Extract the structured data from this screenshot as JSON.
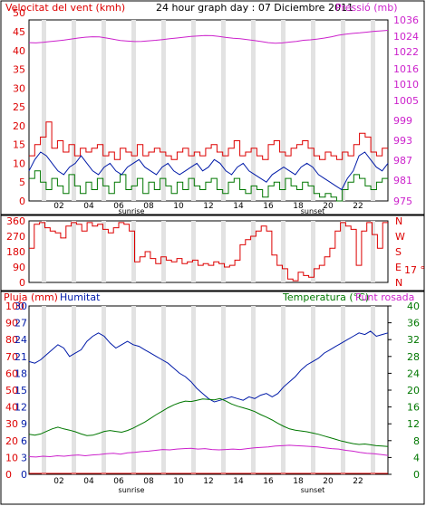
{
  "chart_data": [
    {
      "type": "line",
      "title": "24 hour graph day : 07 Diciembre 2011",
      "left_axis_label": "Velocitat del vent (kmh)",
      "right_axis_label": "Pressió (mb)",
      "left_ticks": [
        "0",
        "5",
        "10",
        "15",
        "20",
        "25",
        "30",
        "35",
        "40",
        "45",
        "50"
      ],
      "right_ticks": [
        "975",
        "981",
        "987",
        "993",
        "999",
        "1005",
        "1010",
        "1016",
        "1022",
        "1024",
        "1030",
        "1036"
      ],
      "x_ticks": [
        "02",
        "04",
        "06",
        "08",
        "10",
        "12",
        "14",
        "16",
        "18",
        "20",
        "22"
      ],
      "annotations": [
        "sunrise",
        "sunset"
      ],
      "colors": {
        "wind": "#dd0000",
        "wind_avg": "#001aa8",
        "gust_low": "#007700",
        "pressure": "#cc22cc"
      },
      "series": [
        {
          "name": "wind_max",
          "values": [
            12,
            15,
            17,
            21,
            14,
            16,
            13,
            15,
            12,
            14,
            13,
            14,
            15,
            12,
            13,
            11,
            14,
            13,
            12,
            15,
            12,
            13,
            14,
            13,
            12,
            11,
            13,
            14,
            12,
            13,
            12,
            14,
            15,
            13,
            12,
            14,
            16,
            12,
            13,
            14,
            12,
            11,
            15,
            16,
            13,
            12,
            14,
            15,
            16,
            14,
            12,
            11,
            13,
            12,
            11,
            13,
            12,
            15,
            18,
            17,
            13,
            12,
            14
          ]
        },
        {
          "name": "wind_avg",
          "values": [
            8,
            11,
            13,
            12,
            10,
            8,
            7,
            9,
            10,
            12,
            10,
            8,
            7,
            9,
            10,
            8,
            7,
            9,
            10,
            11,
            9,
            8,
            7,
            9,
            10,
            8,
            7,
            8,
            9,
            10,
            8,
            9,
            11,
            10,
            8,
            7,
            9,
            10,
            8,
            7,
            6,
            5,
            7,
            8,
            9,
            8,
            7,
            9,
            10,
            9,
            7,
            6,
            5,
            4,
            3,
            6,
            8,
            12,
            13,
            11,
            9,
            8,
            10
          ]
        },
        {
          "name": "wind_min",
          "values": [
            6,
            8,
            5,
            3,
            6,
            4,
            2,
            7,
            4,
            2,
            5,
            3,
            6,
            4,
            2,
            5,
            7,
            3,
            4,
            6,
            2,
            5,
            3,
            6,
            4,
            2,
            5,
            3,
            6,
            4,
            3,
            5,
            6,
            3,
            2,
            5,
            6,
            3,
            2,
            4,
            3,
            1,
            4,
            5,
            3,
            6,
            4,
            3,
            5,
            4,
            2,
            1,
            2,
            1,
            0,
            3,
            5,
            7,
            6,
            4,
            3,
            5,
            6
          ]
        },
        {
          "name": "pressure",
          "values": [
            1027.5,
            1027.4,
            1027.6,
            1027.9,
            1028.2,
            1028.5,
            1028.9,
            1029.3,
            1029.6,
            1029.8,
            1029.7,
            1029.3,
            1028.8,
            1028.3,
            1028.1,
            1027.9,
            1028.0,
            1028.2,
            1028.4,
            1028.7,
            1029.0,
            1029.3,
            1029.6,
            1029.9,
            1030.1,
            1030.3,
            1030.2,
            1029.9,
            1029.5,
            1029.2,
            1029.0,
            1028.7,
            1028.3,
            1027.9,
            1027.5,
            1027.3,
            1027.4,
            1027.7,
            1028.0,
            1028.4,
            1028.6,
            1028.9,
            1029.3,
            1029.8,
            1030.4,
            1030.8,
            1031.1,
            1031.3,
            1031.6,
            1031.9,
            1032.1,
            1032.3
          ]
        }
      ]
    },
    {
      "type": "line",
      "left_ticks": [
        "0",
        "90",
        "180",
        "270",
        "360"
      ],
      "right_ticks": [
        "N",
        "E",
        "S",
        "W",
        "N"
      ],
      "right_annotation": "17 °",
      "colors": {
        "dir": "#dd0000"
      },
      "series": [
        {
          "name": "wind_direction",
          "values": [
            200,
            340,
            350,
            320,
            300,
            290,
            260,
            330,
            350,
            340,
            300,
            350,
            330,
            340,
            310,
            290,
            320,
            350,
            340,
            300,
            120,
            150,
            180,
            140,
            110,
            150,
            130,
            120,
            140,
            110,
            120,
            130,
            100,
            110,
            100,
            120,
            110,
            90,
            100,
            130,
            220,
            250,
            270,
            300,
            330,
            300,
            160,
            100,
            80,
            20,
            10,
            60,
            40,
            30,
            80,
            100,
            150,
            200,
            300,
            350,
            330,
            310,
            100,
            300,
            350,
            280,
            200,
            350
          ]
        }
      ]
    },
    {
      "type": "line",
      "left1_label": "Pluja (mm)",
      "left2_label": "Humitat",
      "right_label": "Temperatura (°C)",
      "right_label2": "Punt rosada",
      "left1_ticks": [
        "0",
        "10",
        "20",
        "30",
        "40",
        "50",
        "60",
        "70",
        "80",
        "90",
        "100"
      ],
      "left2_ticks": [
        "0",
        "3",
        "6",
        "9",
        "12",
        "15",
        "18",
        "21",
        "24",
        "27",
        "30"
      ],
      "right_ticks": [
        "0",
        "4",
        "8",
        "12",
        "16",
        "20",
        "24",
        "28",
        "32",
        "36",
        "40"
      ],
      "x_ticks": [
        "02",
        "04",
        "06",
        "08",
        "10",
        "12",
        "14",
        "16",
        "18",
        "20",
        "22"
      ],
      "annotations": [
        "sunrise",
        "sunset"
      ],
      "colors": {
        "humidity": "#001aa8",
        "temperature": "#007700",
        "dew_point": "#cc22cc",
        "rain": "#dd0000"
      },
      "series": [
        {
          "name": "humidity",
          "values": [
            67,
            66,
            68,
            71,
            74,
            77,
            75,
            70,
            72,
            74,
            79,
            82,
            84,
            82,
            78,
            75,
            77,
            79,
            77,
            76,
            74,
            72,
            70,
            68,
            66,
            63,
            60,
            58,
            55,
            51,
            48,
            45,
            43,
            44,
            45,
            46,
            45,
            44,
            46,
            45,
            47,
            48,
            46,
            48,
            52,
            55,
            58,
            62,
            65,
            67,
            69,
            72,
            74,
            76,
            78,
            80,
            82,
            84,
            83,
            85,
            82,
            83,
            84
          ]
        },
        {
          "name": "temperature",
          "values": [
            9.5,
            9.3,
            9.6,
            10.2,
            10.8,
            11.2,
            10.8,
            10.5,
            10.1,
            9.6,
            9.2,
            9.3,
            9.7,
            10.2,
            10.4,
            10.2,
            10.0,
            10.4,
            11.0,
            11.7,
            12.4,
            13.3,
            14.2,
            15.0,
            15.8,
            16.5,
            17.0,
            17.4,
            17.3,
            17.6,
            17.9,
            17.8,
            17.7,
            18.0,
            17.4,
            16.7,
            16.2,
            15.8,
            15.4,
            14.9,
            14.2,
            13.6,
            12.9,
            12.1,
            11.4,
            10.8,
            10.5,
            10.3,
            10.1,
            9.8,
            9.5,
            9.1,
            8.7,
            8.3,
            7.9,
            7.6,
            7.3,
            7.1,
            7.2,
            7.0,
            6.8,
            6.7,
            6.6
          ]
        },
        {
          "name": "dew_point",
          "values": [
            4.2,
            4.1,
            4.3,
            4.2,
            4.4,
            4.3,
            4.5,
            4.6,
            4.4,
            4.6,
            4.7,
            4.9,
            5.0,
            4.8,
            5.1,
            5.2,
            5.4,
            5.5,
            5.7,
            5.9,
            5.8,
            6.0,
            6.1,
            6.2,
            6.0,
            6.1,
            5.9,
            5.8,
            5.9,
            6.0,
            5.9,
            6.1,
            6.3,
            6.4,
            6.5,
            6.7,
            6.8,
            6.9,
            6.8,
            6.7,
            6.6,
            6.5,
            6.3,
            6.1,
            6.0,
            5.7,
            5.5,
            5.2,
            5.0,
            4.9,
            4.7,
            4.5
          ]
        },
        {
          "name": "rain",
          "values": [
            0,
            0,
            0,
            0,
            0,
            0,
            0,
            0,
            0,
            0,
            0
          ]
        }
      ]
    }
  ]
}
